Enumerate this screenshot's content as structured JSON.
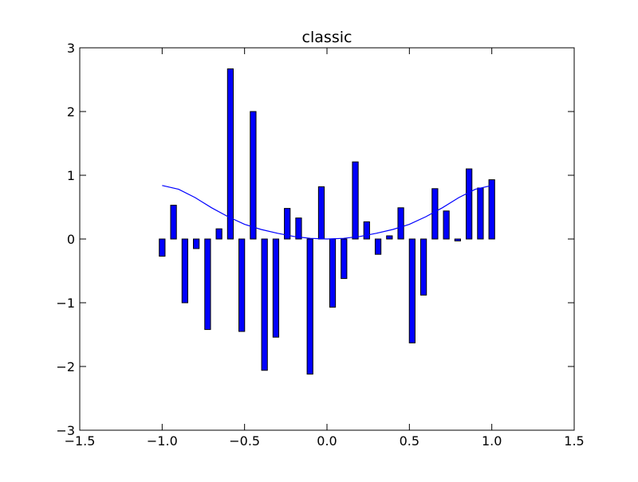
{
  "chart_data": {
    "type": "bar",
    "title": "classic",
    "xlabel": "",
    "ylabel": "",
    "xlim": [
      -1.5,
      1.5
    ],
    "ylim": [
      -3,
      3
    ],
    "grid": false,
    "xticks": [
      "−1.5",
      "−1.0",
      "−0.5",
      "0.0",
      "0.5",
      "1.0",
      "1.5"
    ],
    "yticks": [
      "−3",
      "−2",
      "−1",
      "0",
      "1",
      "2",
      "3"
    ],
    "bar_width": 0.035,
    "bar_color": "#0000ff",
    "bar_edge_color": "#000000",
    "line_color": "#0000ff",
    "bars": {
      "x": [
        -1.0,
        -0.931,
        -0.862,
        -0.793,
        -0.724,
        -0.655,
        -0.586,
        -0.517,
        -0.448,
        -0.379,
        -0.31,
        -0.241,
        -0.172,
        -0.103,
        -0.034,
        0.034,
        0.103,
        0.172,
        0.241,
        0.31,
        0.379,
        0.448,
        0.517,
        0.586,
        0.655,
        0.724,
        0.793,
        0.862,
        0.931,
        1.0
      ],
      "values": [
        -0.27,
        0.53,
        -1.0,
        -0.15,
        -1.42,
        0.16,
        2.67,
        -1.45,
        2.0,
        -2.06,
        -1.54,
        0.48,
        0.33,
        -2.12,
        0.82,
        -1.07,
        -0.62,
        1.21,
        0.27,
        -0.24,
        0.05,
        0.49,
        -1.63,
        -0.88,
        0.79,
        0.44,
        -0.03,
        1.1,
        0.8,
        0.93
      ]
    },
    "line": {
      "x": [
        -1.0,
        -0.9,
        -0.8,
        -0.7,
        -0.6,
        -0.5,
        -0.4,
        -0.3,
        -0.2,
        -0.1,
        0.0,
        0.1,
        0.2,
        0.3,
        0.4,
        0.5,
        0.6,
        0.7,
        0.8,
        0.9,
        1.0
      ],
      "y": [
        0.84,
        0.78,
        0.65,
        0.49,
        0.35,
        0.23,
        0.15,
        0.09,
        0.04,
        0.01,
        0.0,
        0.01,
        0.04,
        0.09,
        0.15,
        0.23,
        0.35,
        0.49,
        0.65,
        0.78,
        0.84
      ]
    }
  }
}
